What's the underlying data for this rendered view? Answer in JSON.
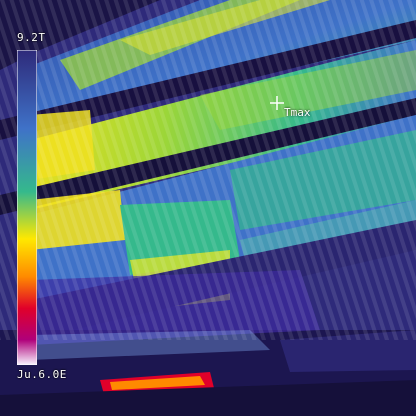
{
  "thermal_image": {
    "scale_max_label": "9.2T",
    "scale_min_label": "Ju.6.0E",
    "cursor_label": "Tmax",
    "palette": [
      "#f8f4ff",
      "#ffe800",
      "#ff8a00",
      "#e0002a",
      "#b0007a",
      "#3d2a9e",
      "#181040"
    ],
    "colors": {
      "hot": "#f0e020",
      "warm": "#9cd638",
      "mid": "#35b98c",
      "cool": "#3f72c8",
      "cold": "#2e2a7a",
      "shadow": "#15103a"
    }
  }
}
